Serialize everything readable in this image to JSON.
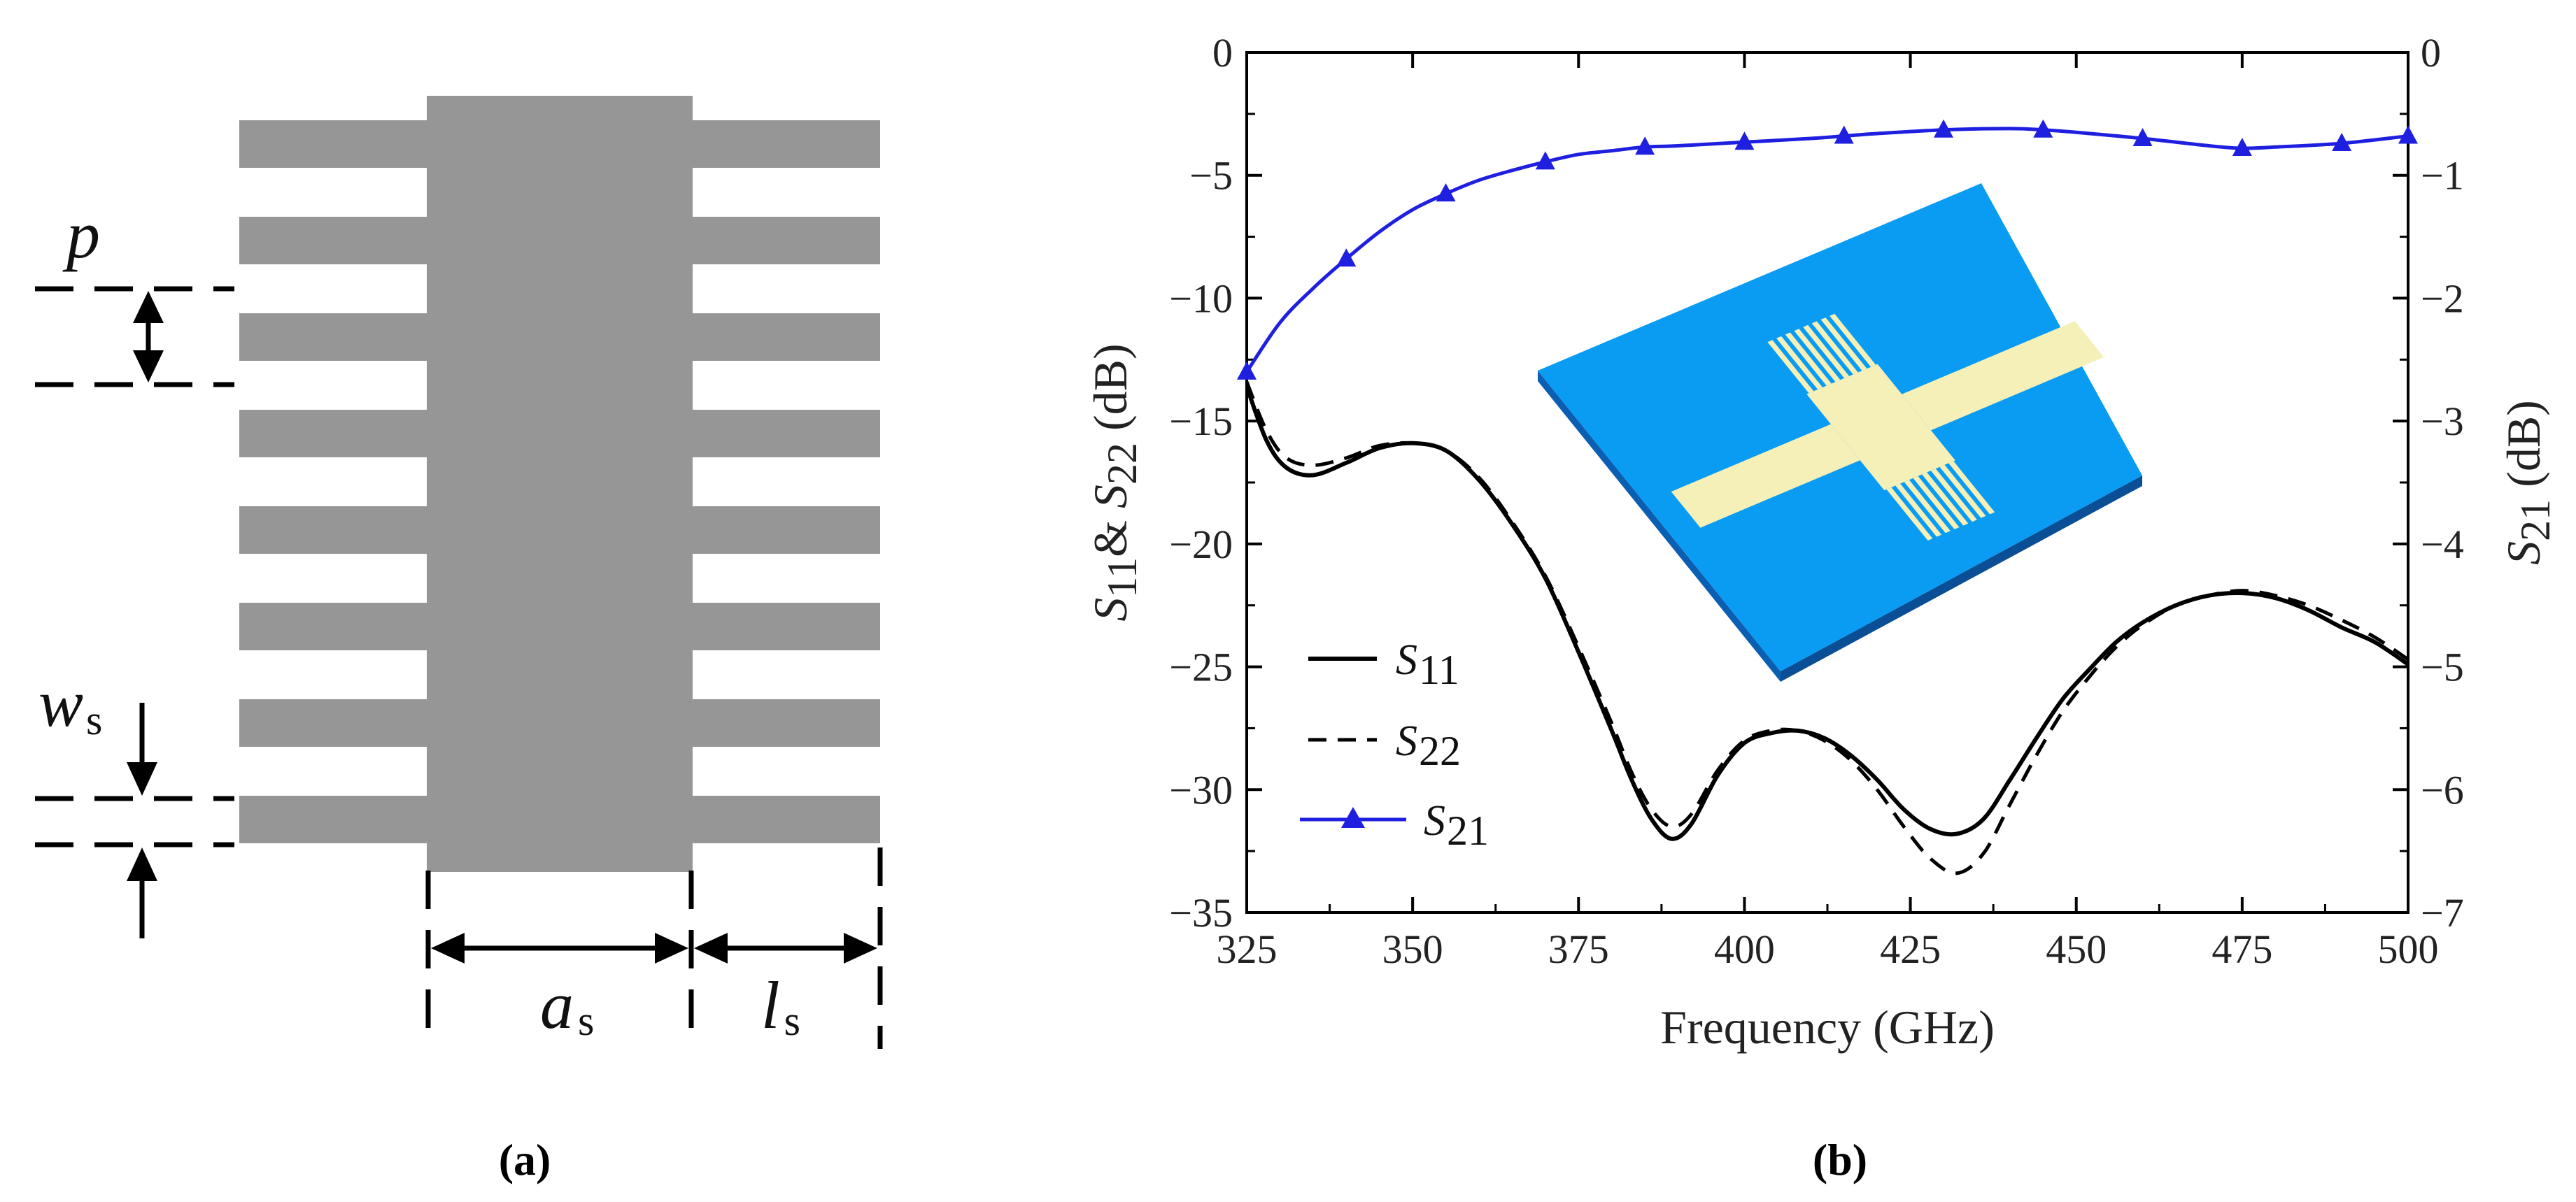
{
  "panel_a": {
    "caption": "(a)",
    "labels": {
      "p": "p",
      "w": "w",
      "w_sub": "s",
      "a": "a",
      "a_sub": "s",
      "l": "l",
      "l_sub": "s"
    },
    "stub_count_per_side": 8
  },
  "panel_b": {
    "caption": "(b)"
  },
  "chart_data": {
    "type": "line",
    "xlabel": "Frequency (GHz)",
    "ylabel_left": {
      "s1": "S",
      "s1_sub": "11",
      "amp": "& ",
      "s2": "S",
      "s2_sub": "22",
      "unit": " (dB)"
    },
    "ylabel_right": {
      "s": "S",
      "s_sub": "21",
      "unit": " (dB)"
    },
    "xlim": [
      325,
      500
    ],
    "ylim_left": [
      -35,
      0
    ],
    "ylim_right": [
      -7,
      0
    ],
    "x_ticks": [
      325,
      350,
      375,
      400,
      425,
      450,
      475,
      500
    ],
    "y_ticks_left": [
      0,
      -5,
      -10,
      -15,
      -20,
      -25,
      -30,
      -35
    ],
    "y_ticks_right": [
      0,
      -1,
      -2,
      -3,
      -4,
      -5,
      -6,
      -7
    ],
    "legend_position": "lower-left",
    "series": [
      {
        "name": "S11",
        "legend_main": "S",
        "legend_sub": "11",
        "axis": "left",
        "style": "solid",
        "color": "#000000",
        "x": [
          325,
          328,
          331,
          335,
          340,
          345,
          350,
          355,
          360,
          365,
          370,
          375,
          380,
          383,
          386,
          389,
          392,
          396,
          400,
          404,
          408,
          412,
          416,
          420,
          424,
          428,
          432,
          436,
          440,
          444,
          448,
          452,
          456,
          460,
          465,
          470,
          475,
          480,
          485,
          490,
          495,
          500
        ],
        "y": [
          -13.6,
          -15.8,
          -16.9,
          -17.2,
          -16.7,
          -16.1,
          -15.9,
          -16.2,
          -17.4,
          -19.2,
          -21.4,
          -24.4,
          -27.6,
          -29.6,
          -31.2,
          -32.0,
          -31.4,
          -29.4,
          -28.1,
          -27.7,
          -27.6,
          -27.9,
          -28.6,
          -29.6,
          -30.8,
          -31.6,
          -31.8,
          -31.2,
          -29.6,
          -27.9,
          -26.3,
          -25.1,
          -24.0,
          -23.2,
          -22.5,
          -22.1,
          -22.0,
          -22.2,
          -22.7,
          -23.4,
          -24.0,
          -24.9
        ]
      },
      {
        "name": "S22",
        "legend_main": "S",
        "legend_sub": "22",
        "axis": "left",
        "style": "dashed",
        "color": "#000000",
        "x": [
          325,
          328,
          331,
          335,
          340,
          345,
          350,
          355,
          360,
          365,
          370,
          375,
          380,
          383,
          386,
          389,
          392,
          396,
          400,
          404,
          408,
          412,
          416,
          420,
          424,
          428,
          432,
          436,
          440,
          444,
          448,
          452,
          456,
          460,
          465,
          470,
          475,
          480,
          485,
          490,
          495,
          500
        ],
        "y": [
          -13.4,
          -15.4,
          -16.5,
          -16.8,
          -16.5,
          -16.0,
          -15.9,
          -16.2,
          -17.3,
          -19.1,
          -21.3,
          -24.2,
          -27.3,
          -29.3,
          -30.8,
          -31.5,
          -31.0,
          -29.2,
          -28.0,
          -27.6,
          -27.6,
          -28.0,
          -28.8,
          -30.0,
          -31.5,
          -32.8,
          -33.4,
          -32.6,
          -30.6,
          -28.6,
          -26.8,
          -25.4,
          -24.2,
          -23.3,
          -22.5,
          -22.1,
          -21.9,
          -22.1,
          -22.5,
          -23.1,
          -23.8,
          -24.7
        ]
      },
      {
        "name": "S21",
        "legend_main": "S",
        "legend_sub": "21",
        "axis": "right",
        "style": "solid",
        "color": "#1f1fe0",
        "marker": "triangle",
        "x": [
          325,
          330,
          335,
          340,
          345,
          350,
          355,
          360,
          365,
          370,
          375,
          380,
          385,
          390,
          400,
          410,
          415,
          420,
          430,
          440,
          445,
          450,
          460,
          470,
          475,
          480,
          490,
          500
        ],
        "y": [
          -2.6,
          -2.2,
          -1.92,
          -1.68,
          -1.46,
          -1.28,
          -1.15,
          -1.04,
          -0.96,
          -0.89,
          -0.83,
          -0.8,
          -0.77,
          -0.76,
          -0.73,
          -0.7,
          -0.68,
          -0.66,
          -0.63,
          -0.62,
          -0.63,
          -0.65,
          -0.7,
          -0.76,
          -0.78,
          -0.77,
          -0.74,
          -0.68
        ],
        "marker_x": [
          325,
          340,
          355,
          370,
          385,
          400,
          415,
          430,
          445,
          460,
          475,
          490,
          500
        ],
        "marker_y": [
          -2.6,
          -1.68,
          -1.15,
          -0.89,
          -0.77,
          -0.73,
          -0.68,
          -0.63,
          -0.63,
          -0.7,
          -0.78,
          -0.74,
          -0.68
        ]
      }
    ],
    "inset": {
      "description_icon": "3d-board-icon",
      "substrate_color": "#0a9cf2",
      "trace_color": "#f5f0b8"
    }
  }
}
